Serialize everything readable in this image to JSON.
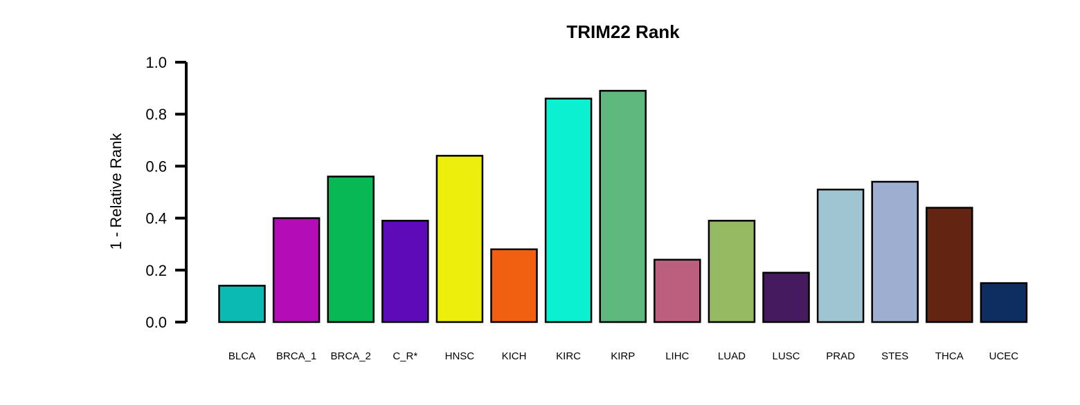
{
  "chart_data": {
    "type": "bar",
    "title": "TRIM22 Rank",
    "xlabel": "",
    "ylabel": "1 - Relative Rank",
    "ylim": [
      0,
      1.0
    ],
    "yticks": [
      "0.0",
      "0.2",
      "0.4",
      "0.6",
      "0.8",
      "1.0"
    ],
    "grid": false,
    "legend": "none",
    "categories": [
      "BLCA",
      "BRCA_1",
      "BRCA_2",
      "C_R*",
      "HNSC",
      "KICH",
      "KIRC",
      "KIRP",
      "LIHC",
      "LUAD",
      "LUSC",
      "PRAD",
      "STES",
      "THCA",
      "UCEC"
    ],
    "values": [
      0.14,
      0.4,
      0.56,
      0.39,
      0.64,
      0.28,
      0.86,
      0.89,
      0.24,
      0.39,
      0.19,
      0.51,
      0.54,
      0.44,
      0.15
    ],
    "colors": [
      "#0cbab4",
      "#b40db8",
      "#08b855",
      "#5e0ab8",
      "#eeee0c",
      "#f06010",
      "#0cf0d2",
      "#5fb97e",
      "#bc5f7e",
      "#96ba62",
      "#461a5e",
      "#a0c5d2",
      "#9eaed0",
      "#642412",
      "#0e2e62"
    ]
  }
}
